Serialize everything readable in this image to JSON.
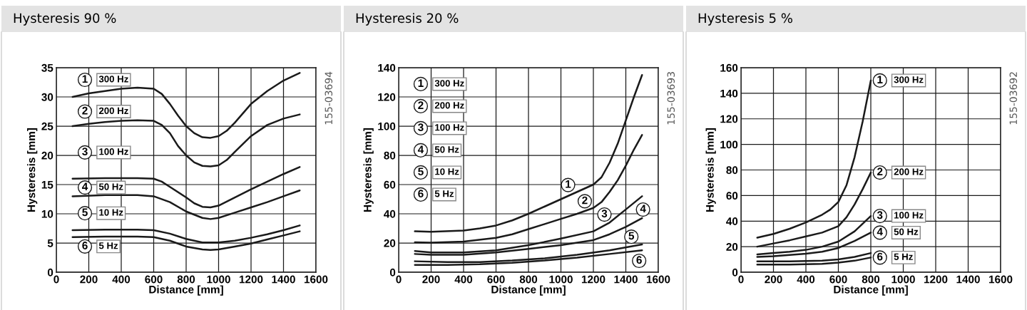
{
  "chart_data": [
    {
      "type": "line",
      "title": "Hysteresis 90 %",
      "xlabel": "Distance [mm]",
      "ylabel": "Hysteresis [mm]",
      "xlim": [
        0,
        1600
      ],
      "ylim": [
        0,
        35
      ],
      "xticks": [
        0,
        200,
        400,
        600,
        800,
        1000,
        1200,
        1400,
        1600
      ],
      "yticks": [
        0,
        5,
        10,
        15,
        20,
        25,
        30,
        35
      ],
      "grid": true,
      "legend": "left",
      "series": [
        {
          "name": "300 Hz",
          "color": "#1a1a1a",
          "x": [
            100,
            200,
            300,
            400,
            500,
            600,
            650,
            700,
            750,
            800,
            850,
            900,
            950,
            1000,
            1050,
            1100,
            1200,
            1300,
            1400,
            1500
          ],
          "values": [
            30,
            30.6,
            31,
            31.4,
            31.6,
            31.4,
            30.5,
            28.8,
            26.8,
            25,
            23.8,
            23.1,
            23,
            23.3,
            24.2,
            25.6,
            28.8,
            31,
            32.8,
            34.1
          ]
        },
        {
          "name": "200 Hz",
          "color": "#1a1a1a",
          "x": [
            100,
            200,
            300,
            400,
            500,
            600,
            650,
            700,
            750,
            800,
            850,
            900,
            950,
            1000,
            1050,
            1100,
            1200,
            1300,
            1400,
            1500
          ],
          "values": [
            25,
            25.4,
            25.7,
            25.9,
            26,
            25.9,
            25.2,
            23.8,
            21.6,
            20,
            18.8,
            18.2,
            18.1,
            18.3,
            19.2,
            20.6,
            23.3,
            25.2,
            26.3,
            27
          ]
        },
        {
          "name": "100 Hz",
          "color": "#1a1a1a",
          "x": [
            100,
            300,
            500,
            600,
            650,
            700,
            800,
            850,
            900,
            950,
            1000,
            1100,
            1200,
            1300,
            1400,
            1500
          ],
          "values": [
            16,
            16.1,
            16.1,
            16,
            15.5,
            14.6,
            12.8,
            11.8,
            11.2,
            11.1,
            11.4,
            12.8,
            14.2,
            15.5,
            16.8,
            18
          ]
        },
        {
          "name": "50 Hz",
          "color": "#1a1a1a",
          "x": [
            100,
            300,
            500,
            600,
            700,
            800,
            900,
            950,
            1000,
            1100,
            1200,
            1300,
            1400,
            1500
          ],
          "values": [
            13,
            13.2,
            13.2,
            13,
            12,
            10.4,
            9.3,
            9.1,
            9.3,
            10.2,
            11.1,
            12,
            13,
            14
          ]
        },
        {
          "name": "10 Hz",
          "color": "#1a1a1a",
          "x": [
            100,
            300,
            500,
            600,
            700,
            800,
            900,
            1000,
            1100,
            1200,
            1300,
            1400,
            1500
          ],
          "values": [
            7.2,
            7.3,
            7.3,
            7.2,
            6.6,
            5.7,
            5.1,
            5.1,
            5.4,
            5.9,
            6.5,
            7.2,
            8
          ]
        },
        {
          "name": "5 Hz",
          "color": "#1a1a1a",
          "x": [
            100,
            300,
            500,
            600,
            700,
            800,
            900,
            950,
            1000,
            1100,
            1200,
            1300,
            1400,
            1500
          ],
          "values": [
            6,
            6.1,
            6.1,
            6,
            5.4,
            4.4,
            3.9,
            3.8,
            3.9,
            4.4,
            4.9,
            5.6,
            6.3,
            7
          ]
        }
      ],
      "annotations": [
        "1",
        "2",
        "3",
        "4",
        "5",
        "6",
        "155-03694"
      ]
    },
    {
      "type": "line",
      "title": "Hysteresis 20 %",
      "xlabel": "Distance [mm]",
      "ylabel": "Hysteresis [mm]",
      "xlim": [
        0,
        1600
      ],
      "ylim": [
        0,
        140
      ],
      "xticks": [
        0,
        200,
        400,
        600,
        800,
        1000,
        1200,
        1400,
        1600
      ],
      "yticks": [
        0,
        20,
        40,
        60,
        80,
        100,
        120,
        140
      ],
      "grid": true,
      "legend": "top left",
      "series": [
        {
          "name": "300 Hz",
          "color": "#1a1a1a",
          "x": [
            100,
            200,
            400,
            500,
            600,
            700,
            800,
            900,
            1000,
            1100,
            1200,
            1250,
            1300,
            1350,
            1400,
            1450,
            1500
          ],
          "values": [
            28,
            27.7,
            28.5,
            30,
            32,
            35.5,
            40,
            45,
            50,
            55,
            60,
            65,
            75,
            88,
            104,
            120,
            135
          ]
        },
        {
          "name": "200 Hz",
          "color": "#1a1a1a",
          "x": [
            100,
            200,
            400,
            600,
            700,
            800,
            900,
            1000,
            1100,
            1200,
            1250,
            1300,
            1350,
            1400,
            1450,
            1500
          ],
          "values": [
            20.5,
            20.2,
            21,
            23.5,
            26,
            29.5,
            33,
            36.5,
            40,
            44,
            48,
            55,
            63,
            73,
            84,
            94
          ]
        },
        {
          "name": "100 Hz",
          "color": "#1a1a1a",
          "x": [
            100,
            200,
            400,
            600,
            800,
            1000,
            1200,
            1300,
            1400,
            1500
          ],
          "values": [
            14.5,
            13.5,
            13.5,
            15,
            18.5,
            23,
            28,
            34,
            43,
            52
          ]
        },
        {
          "name": "50 Hz",
          "color": "#1a1a1a",
          "x": [
            100,
            200,
            400,
            600,
            800,
            1000,
            1200,
            1300,
            1400,
            1500
          ],
          "values": [
            12.5,
            12,
            12,
            13.5,
            16,
            18.5,
            22,
            26,
            31,
            37
          ]
        },
        {
          "name": "10 Hz",
          "color": "#1a1a1a",
          "x": [
            100,
            300,
            500,
            700,
            900,
            1100,
            1300,
            1500
          ],
          "values": [
            7.5,
            7,
            7,
            8,
            9.5,
            12,
            15,
            19
          ]
        },
        {
          "name": "5 Hz",
          "color": "#1a1a1a",
          "x": [
            100,
            300,
            500,
            700,
            900,
            1100,
            1300,
            1500
          ],
          "values": [
            5,
            5,
            5.5,
            6.5,
            8,
            10,
            12.5,
            15
          ]
        }
      ],
      "annotations": [
        "1",
        "2",
        "3",
        "4",
        "5",
        "6",
        {
          "text": "1",
          "x": 1044,
          "y": 59.7
        },
        {
          "text": "2",
          "x": 1147,
          "y": 48.6
        },
        {
          "text": "3",
          "x": 1268,
          "y": 39.5
        },
        {
          "text": "4",
          "x": 1506,
          "y": 42.9
        },
        {
          "text": "5",
          "x": 1434,
          "y": 24.3
        },
        {
          "text": "6",
          "x": 1482,
          "y": 7.8
        },
        "155-03693"
      ]
    },
    {
      "type": "line",
      "title": "Hysteresis 5 %",
      "xlabel": "Distance [mm]",
      "ylabel": "Hysteresis [mm]",
      "xlim": [
        0,
        1600
      ],
      "ylim": [
        0,
        160
      ],
      "xticks": [
        0,
        200,
        400,
        600,
        800,
        1000,
        1200,
        1400,
        1600
      ],
      "yticks": [
        0,
        20,
        40,
        60,
        80,
        100,
        120,
        140,
        160
      ],
      "grid": true,
      "legend": "right",
      "series": [
        {
          "name": "300 Hz",
          "color": "#1a1a1a",
          "x": [
            100,
            200,
            300,
            400,
            500,
            550,
            600,
            650,
            700,
            750,
            800
          ],
          "values": [
            27,
            30,
            34,
            39,
            45,
            49,
            55,
            68,
            90,
            118,
            150
          ]
        },
        {
          "name": "200 Hz",
          "color": "#1a1a1a",
          "x": [
            100,
            200,
            300,
            400,
            500,
            600,
            650,
            700,
            750,
            800
          ],
          "values": [
            20,
            22.5,
            25,
            28,
            31,
            36,
            43,
            53,
            65,
            78
          ]
        },
        {
          "name": "100 Hz",
          "color": "#1a1a1a",
          "x": [
            100,
            200,
            300,
            400,
            500,
            600,
            700,
            800
          ],
          "values": [
            14,
            15,
            16,
            17.5,
            20,
            24,
            32,
            44
          ]
        },
        {
          "name": "50 Hz",
          "color": "#1a1a1a",
          "x": [
            100,
            200,
            300,
            400,
            500,
            600,
            700,
            800
          ],
          "values": [
            12,
            12.5,
            13.5,
            14.5,
            16,
            19,
            24.5,
            31
          ]
        },
        {
          "color": "#1a1a1a",
          "x": [
            100,
            300,
            500,
            600,
            700,
            800
          ],
          "values": [
            8.5,
            8.5,
            9,
            10,
            12,
            15
          ]
        },
        {
          "name": "5 Hz",
          "color": "#1a1a1a",
          "x": [
            100,
            300,
            500,
            600,
            700,
            800
          ],
          "values": [
            6,
            6,
            6.5,
            7.5,
            9,
            11.5
          ]
        }
      ],
      "annotations": [
        "1",
        "2",
        "3",
        "4",
        "6",
        "155-03692"
      ]
    }
  ]
}
